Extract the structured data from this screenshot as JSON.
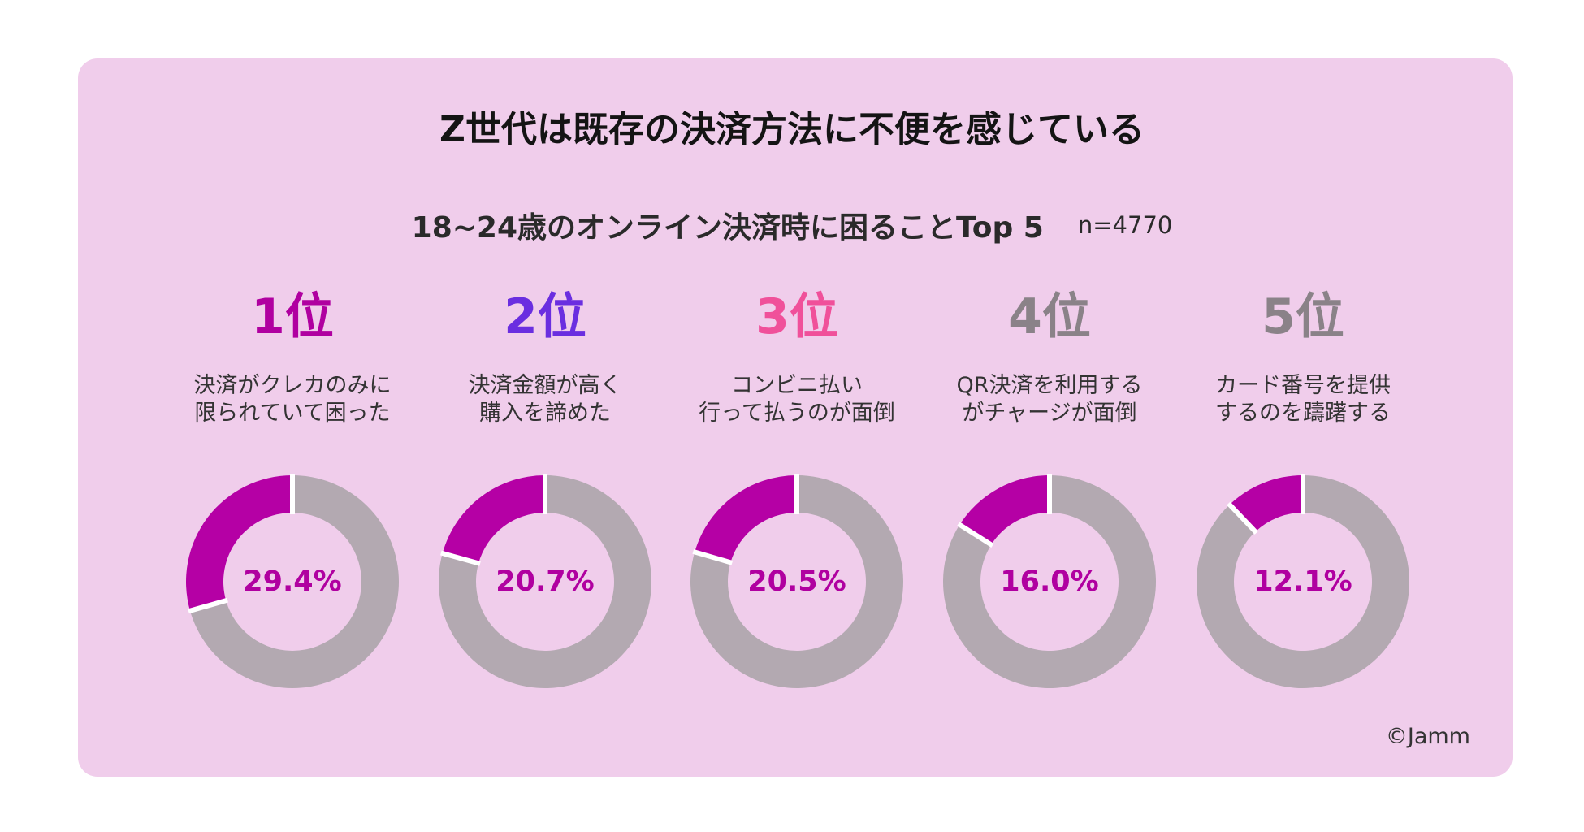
{
  "title": "Z世代は既存の決済方法に不便を感じている",
  "subtitle": "18~24歳のオンライン決済時に困ることTop 5",
  "sample_size": "n=4770",
  "copyright": "©Jamm",
  "colors": {
    "card_background": "#f0cdeb",
    "highlight_segment": "#b500a5",
    "rest_segment": "#b3a9b1",
    "percent_text": "#b000a0",
    "gap": "#ffffff"
  },
  "chart_data": [
    {
      "type": "pie",
      "style": "donut",
      "rank": "1位",
      "rank_color": "#b000a0",
      "description": [
        "決済がクレカのみに",
        "限られていて困った"
      ],
      "value": 29.4,
      "value_label": "29.4%"
    },
    {
      "type": "pie",
      "style": "donut",
      "rank": "2位",
      "rank_color": "#6a2ee0",
      "description": [
        "決済金額が高く",
        "購入を諦めた"
      ],
      "value": 20.7,
      "value_label": "20.7%"
    },
    {
      "type": "pie",
      "style": "donut",
      "rank": "3位",
      "rank_color": "#f0509a",
      "description": [
        "コンビニ払い",
        "行って払うのが面倒"
      ],
      "value": 20.5,
      "value_label": "20.5%"
    },
    {
      "type": "pie",
      "style": "donut",
      "rank": "4位",
      "rank_color": "#8a8288",
      "description": [
        "QR決済を利用する",
        "がチャージが面倒"
      ],
      "value": 16.0,
      "value_label": "16.0%"
    },
    {
      "type": "pie",
      "style": "donut",
      "rank": "5位",
      "rank_color": "#8a8288",
      "description": [
        "カード番号を提供",
        "するのを躊躇する"
      ],
      "value": 12.1,
      "value_label": "12.1%"
    }
  ]
}
